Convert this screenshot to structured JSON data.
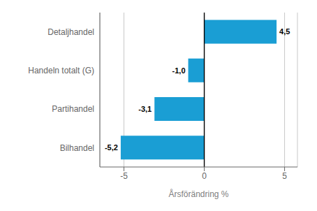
{
  "chart_data": {
    "type": "bar",
    "orientation": "horizontal",
    "categories": [
      "Bilhandel",
      "Partihandel",
      "Handeln totalt (G)",
      "Detaljhandel"
    ],
    "values": [
      -5.2,
      -3.1,
      -1.0,
      4.5
    ],
    "value_labels": [
      "-5,2",
      "-3,1",
      "-1,0",
      "4,5"
    ],
    "data_labels": true,
    "color": "#1a9ed4",
    "xlabel": "Årsförändring %",
    "xlim": [
      -6.5,
      5.8
    ],
    "xticks": [
      -5,
      0,
      5
    ],
    "grid": true
  }
}
